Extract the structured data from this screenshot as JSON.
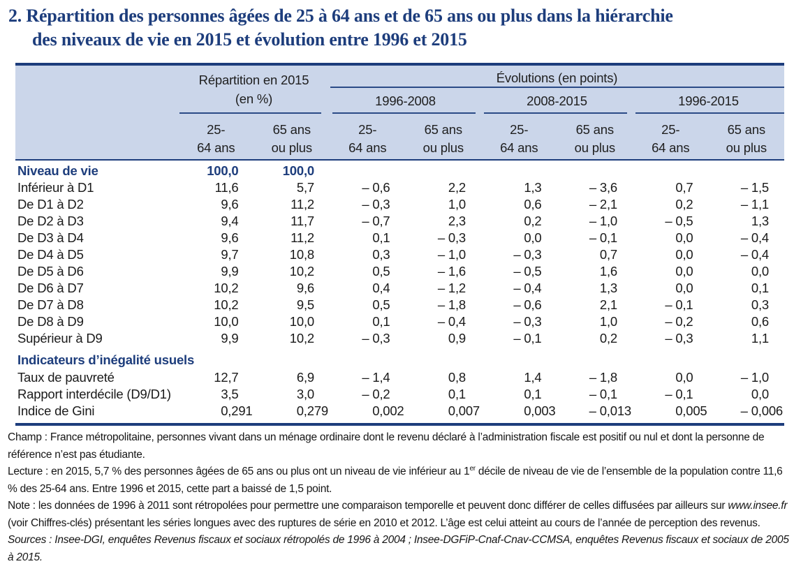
{
  "title": "2. Répartition des personnes âgées de 25 à 64 ans et de 65 ans ou plus dans la hiérarchie\ndes niveaux de vie en 2015 et évolution entre 1996 et 2015",
  "colors": {
    "accent_navy": "#1d3d7c",
    "header_band": "#cbd6ea",
    "body_text": "#1a1a1a"
  },
  "table": {
    "group_headers": {
      "repartition_line1": "Répartition en 2015",
      "repartition_line2": "(en %)",
      "evolutions": "Évolutions (en points)",
      "periods": [
        "1996-2008",
        "2008-2015",
        "1996-2015"
      ]
    },
    "age_col_headers": [
      {
        "line1": "25-",
        "line2": "64 ans"
      },
      {
        "line1": "65 ans",
        "line2": "ou plus"
      }
    ],
    "rows": [
      {
        "label": "Niveau de vie",
        "emph": true,
        "values": [
          "100,0",
          "100,0",
          "",
          "",
          "",
          "",
          "",
          ""
        ]
      },
      {
        "label": "Inférieur à D1",
        "values": [
          "11,6",
          "5,7",
          "– 0,6",
          "2,2",
          "1,3",
          "– 3,6",
          "0,7",
          "– 1,5"
        ]
      },
      {
        "label": "De D1 à D2",
        "values": [
          "9,6",
          "11,2",
          "– 0,3",
          "1,0",
          "0,6",
          "– 2,1",
          "0,2",
          "– 1,1"
        ]
      },
      {
        "label": "De D2 à D3",
        "values": [
          "9,4",
          "11,7",
          "– 0,7",
          "2,3",
          "0,2",
          "– 1,0",
          "– 0,5",
          "1,3"
        ]
      },
      {
        "label": "De D3 à D4",
        "values": [
          "9,6",
          "11,2",
          "0,1",
          "– 0,3",
          "0,0",
          "– 0,1",
          "0,0",
          "– 0,4"
        ]
      },
      {
        "label": "De D4 à D5",
        "values": [
          "9,7",
          "10,8",
          "0,3",
          "– 1,0",
          "– 0,3",
          "0,7",
          "0,0",
          "– 0,4"
        ]
      },
      {
        "label": "De D5 à D6",
        "values": [
          "9,9",
          "10,2",
          "0,5",
          "– 1,6",
          "– 0,5",
          "1,6",
          "0,0",
          "0,0"
        ]
      },
      {
        "label": "De D6 à D7",
        "values": [
          "10,2",
          "9,6",
          "0,4",
          "– 1,2",
          "– 0,4",
          "1,3",
          "0,0",
          "0,1"
        ]
      },
      {
        "label": "De D7 à D8",
        "values": [
          "10,2",
          "9,5",
          "0,5",
          "– 1,8",
          "– 0,6",
          "2,1",
          "– 0,1",
          "0,3"
        ]
      },
      {
        "label": "De D8 à D9",
        "values": [
          "10,0",
          "10,0",
          "0,1",
          "– 0,4",
          "– 0,3",
          "1,0",
          "– 0,2",
          "0,6"
        ]
      },
      {
        "label": "Supérieur à D9",
        "values": [
          "9,9",
          "10,2",
          "– 0,3",
          "0,9",
          "– 0,1",
          "0,2",
          "– 0,3",
          "1,1"
        ]
      },
      {
        "label": "Indicateurs d’inégalité usuels",
        "emph": true,
        "section": true,
        "values": []
      },
      {
        "label": "Taux de pauvreté",
        "values": [
          "12,7",
          "6,9",
          "– 1,4",
          "0,8",
          "1,4",
          "– 1,8",
          "0,0",
          "– 1,0"
        ]
      },
      {
        "label": "Rapport interdécile (D9/D1)",
        "values": [
          "3,5",
          "3,0",
          "– 0,2",
          "0,1",
          "0,1",
          "– 0,1",
          "– 0,1",
          "0,0"
        ]
      },
      {
        "label": "Indice de Gini",
        "decimals3": true,
        "values": [
          "0,291",
          "0,279",
          "0,002",
          "0,007",
          "0,003",
          "– 0,013",
          "0,005",
          "– 0,006"
        ]
      }
    ]
  },
  "footnotes": [
    {
      "segments": [
        {
          "text": "Champ : France métropolitaine, personnes vivant dans un ménage ordinaire dont le revenu déclaré à l’administration fiscale est positif ou nul et dont la personne de référence n’est pas étudiante.",
          "style": "normal"
        }
      ]
    },
    {
      "segments": [
        {
          "text": "Lecture : en 2015, 5,7 % des personnes âgées de 65 ans ou plus ont un niveau de vie inférieur au 1",
          "style": "normal"
        },
        {
          "text": "er",
          "style": "sup"
        },
        {
          "text": " décile de niveau de vie de l’ensemble de la population contre 11,6 % des 25-64 ans. Entre 1996 et 2015, cette part a baissé de 1,5 point.",
          "style": "normal"
        }
      ]
    },
    {
      "segments": [
        {
          "text": "Note : les données de 1996 à 2011 sont rétropolées pour permettre une comparaison temporelle et peuvent donc différer de celles diffusées par ailleurs sur ",
          "style": "normal"
        },
        {
          "text": "www.insee.fr",
          "style": "italic"
        },
        {
          "text": " (voir Chiffres-clés) présentant les séries longues avec des ruptures de série en 2010 et 2012. L’âge est celui atteint au cours de l’année de perception des revenus.",
          "style": "normal"
        }
      ]
    },
    {
      "segments": [
        {
          "text": "Sources : Insee-DGI, enquêtes Revenus fiscaux et sociaux rétropolés de 1996 à 2004 ; Insee-DGFiP-Cnaf-Cnav-CCMSA, enquêtes Revenus fiscaux et sociaux de 2005 à 2015.",
          "style": "italic"
        }
      ]
    }
  ]
}
